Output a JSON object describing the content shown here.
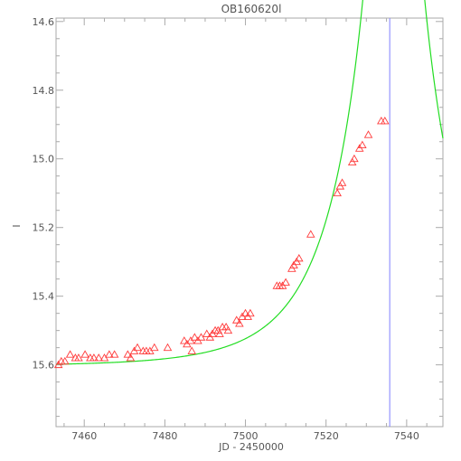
{
  "chart_data": {
    "type": "scatter",
    "title": "OB160620l",
    "xlabel": "JD - 2450000",
    "ylabel": "I",
    "xlim": [
      7453,
      7549
    ],
    "ylim": [
      15.78,
      14.59
    ],
    "y_inverted": true,
    "grid": false,
    "xticks": [
      7460,
      7480,
      7500,
      7520,
      7540
    ],
    "yticks": [
      14.6,
      14.8,
      15.0,
      15.2,
      15.4,
      15.6
    ],
    "ytick_labels": [
      "14.6",
      "14.8",
      "15.0",
      "15.2",
      "15.4",
      "15.6"
    ],
    "colors": {
      "points": "#ff3b3b",
      "model": "#22dd22",
      "marker_line": "#8080ff",
      "axes": "#aaaaaa",
      "text": "#555555"
    },
    "vertical_line_x": 7535.8,
    "series": [
      {
        "kind": "observations",
        "marker": "open-triangle",
        "points": [
          [
            7453.6,
            15.6
          ],
          [
            7454.3,
            15.59
          ],
          [
            7455.2,
            15.59
          ],
          [
            7456.5,
            15.57
          ],
          [
            7457.8,
            15.58
          ],
          [
            7458.6,
            15.58
          ],
          [
            7460.2,
            15.57
          ],
          [
            7461.5,
            15.58
          ],
          [
            7462.4,
            15.58
          ],
          [
            7463.6,
            15.58
          ],
          [
            7465.0,
            15.58
          ],
          [
            7466.2,
            15.57
          ],
          [
            7467.5,
            15.57
          ],
          [
            7470.8,
            15.57
          ],
          [
            7471.5,
            15.58
          ],
          [
            7472.4,
            15.56
          ],
          [
            7473.2,
            15.55
          ],
          [
            7474.6,
            15.56
          ],
          [
            7475.4,
            15.56
          ],
          [
            7476.3,
            15.56
          ],
          [
            7477.4,
            15.55
          ],
          [
            7480.7,
            15.55
          ],
          [
            7484.8,
            15.53
          ],
          [
            7485.5,
            15.54
          ],
          [
            7486.4,
            15.53
          ],
          [
            7486.7,
            15.56
          ],
          [
            7487.4,
            15.52
          ],
          [
            7488.2,
            15.53
          ],
          [
            7489.0,
            15.52
          ],
          [
            7490.4,
            15.51
          ],
          [
            7491.2,
            15.52
          ],
          [
            7491.8,
            15.51
          ],
          [
            7492.5,
            15.5
          ],
          [
            7493.2,
            15.5
          ],
          [
            7493.6,
            15.51
          ],
          [
            7494.3,
            15.49
          ],
          [
            7495.2,
            15.49
          ],
          [
            7495.7,
            15.5
          ],
          [
            7497.8,
            15.47
          ],
          [
            7498.5,
            15.48
          ],
          [
            7499.2,
            15.46
          ],
          [
            7500.0,
            15.45
          ],
          [
            7500.6,
            15.46
          ],
          [
            7501.2,
            15.45
          ],
          [
            7507.8,
            15.37
          ],
          [
            7508.5,
            15.37
          ],
          [
            7509.2,
            15.37
          ],
          [
            7510.0,
            15.36
          ],
          [
            7511.5,
            15.32
          ],
          [
            7512.0,
            15.31
          ],
          [
            7512.7,
            15.3
          ],
          [
            7513.3,
            15.29
          ],
          [
            7516.2,
            15.22
          ],
          [
            7522.8,
            15.1
          ],
          [
            7523.5,
            15.08
          ],
          [
            7524.0,
            15.07
          ],
          [
            7526.5,
            15.01
          ],
          [
            7527.0,
            15.0
          ],
          [
            7528.3,
            14.97
          ],
          [
            7529.0,
            14.96
          ],
          [
            7530.5,
            14.93
          ],
          [
            7533.7,
            14.89
          ],
          [
            7534.6,
            14.89
          ]
        ]
      },
      {
        "kind": "model",
        "line": "smooth"
      }
    ],
    "model_params": {
      "t0": 7536.8,
      "tE": 20,
      "u0": 0.095,
      "base_mag": 15.604
    }
  }
}
